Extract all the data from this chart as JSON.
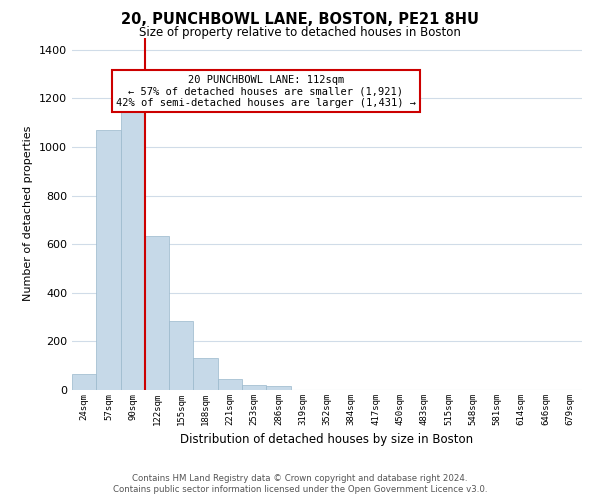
{
  "title": "20, PUNCHBOWL LANE, BOSTON, PE21 8HU",
  "subtitle": "Size of property relative to detached houses in Boston",
  "xlabel": "Distribution of detached houses by size in Boston",
  "ylabel": "Number of detached properties",
  "bar_labels": [
    "24sqm",
    "57sqm",
    "90sqm",
    "122sqm",
    "155sqm",
    "188sqm",
    "221sqm",
    "253sqm",
    "286sqm",
    "319sqm",
    "352sqm",
    "384sqm",
    "417sqm",
    "450sqm",
    "483sqm",
    "515sqm",
    "548sqm",
    "581sqm",
    "614sqm",
    "646sqm",
    "679sqm"
  ],
  "bar_values": [
    65,
    1070,
    1155,
    635,
    285,
    130,
    47,
    20,
    18,
    0,
    0,
    0,
    0,
    0,
    0,
    0,
    0,
    0,
    0,
    0,
    0
  ],
  "bar_color": "#c6d9e8",
  "bar_edge_color": "#9ab8cc",
  "vline_x": 2.5,
  "vline_color": "#cc0000",
  "ylim": [
    0,
    1450
  ],
  "yticks": [
    0,
    200,
    400,
    600,
    800,
    1000,
    1200,
    1400
  ],
  "annotation_title": "20 PUNCHBOWL LANE: 112sqm",
  "annotation_line1": "← 57% of detached houses are smaller (1,921)",
  "annotation_line2": "42% of semi-detached houses are larger (1,431) →",
  "footer_line1": "Contains HM Land Registry data © Crown copyright and database right 2024.",
  "footer_line2": "Contains public sector information licensed under the Open Government Licence v3.0.",
  "background_color": "#ffffff",
  "grid_color": "#d0dce8",
  "annotation_box_color": "#ffffff",
  "annotation_box_edge": "#cc0000"
}
